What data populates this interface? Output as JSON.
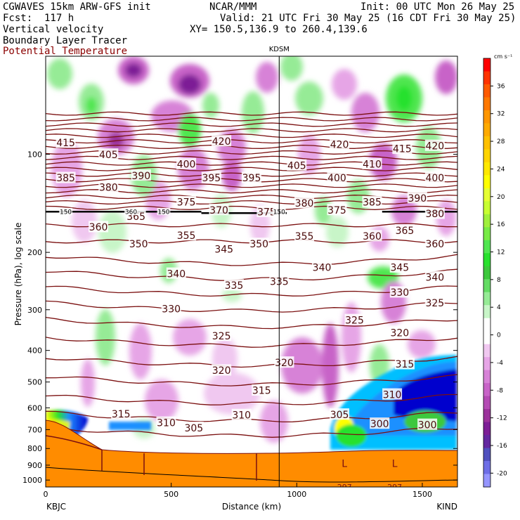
{
  "header": {
    "model": "CGWAVES 15km ARW-GFS init",
    "center": "NCAR/MMM",
    "init": "Init: 00 UTC Mon 26 May 25",
    "fcst": "Fcst:  117 h",
    "valid": "Valid: 21 UTC Fri 30 May 25 (16 CDT Fri 30 May 25)",
    "field1": "Vertical velocity",
    "xy": "XY= 150.5,136.9 to 260.4,139.6",
    "field2": "Boundary Layer Tracer",
    "field3": "Potential Temperature"
  },
  "colors": {
    "theta": "#7b1010",
    "terrain": "#ff8c00"
  },
  "chart_data": {
    "type": "heatmap",
    "title": "",
    "xlabel": "Distance (km)",
    "ylabel": "Pressure (hPa), log scale",
    "xlim": [
      0,
      1640
    ],
    "ylim": [
      1050,
      50
    ],
    "x_ticks": [
      "0",
      "500",
      "1000",
      "1500"
    ],
    "y_ticks": [
      "100",
      "200",
      "300",
      "400",
      "500",
      "600",
      "700",
      "800",
      "900",
      "1000"
    ],
    "y_tick_values": [
      100,
      200,
      300,
      400,
      500,
      600,
      700,
      800,
      900,
      1000
    ],
    "endpoint_left": "KBJC",
    "endpoint_right": "KIND",
    "marker_label": "KDSM",
    "marker_x_km": 930,
    "colorbar": {
      "unit": "cm s⁻¹",
      "labels": [
        "36",
        "32",
        "28",
        "24",
        "20",
        "16",
        "12",
        "8",
        "4",
        "0",
        "-4",
        "-8",
        "-12",
        "-16",
        "-20"
      ],
      "label_values": [
        36,
        32,
        28,
        24,
        20,
        16,
        12,
        8,
        4,
        0,
        -4,
        -8,
        -12,
        -16,
        -20
      ],
      "colors": [
        "#ff0000",
        "#ff3300",
        "#ff5a00",
        "#ff7800",
        "#ff9600",
        "#ffaa00",
        "#ffc000",
        "#ffd400",
        "#ffe800",
        "#ffff00",
        "#e6ff33",
        "#c8ff32",
        "#a0f03c",
        "#78eb46",
        "#50e650",
        "#28e12d",
        "#3cc83c",
        "#64dc64",
        "#96eb96",
        "#c8f5c8",
        "#ffffff",
        "#ffffff",
        "#f0c8f0",
        "#e6a5e6",
        "#d782d7",
        "#c864c8",
        "#b44bb4",
        "#9b329b",
        "#7d1e96",
        "#6428a0",
        "#5050be",
        "#6e6ee6",
        "#9696ff"
      ]
    },
    "theta_labels": [
      {
        "value": "415",
        "x": 80,
        "p": 92
      },
      {
        "value": "420",
        "x": 700,
        "p": 91
      },
      {
        "value": "420",
        "x": 1170,
        "p": 93
      },
      {
        "value": "415",
        "x": 1420,
        "p": 96
      },
      {
        "value": "420",
        "x": 1550,
        "p": 94
      },
      {
        "value": "405",
        "x": 250,
        "p": 100
      },
      {
        "value": "400",
        "x": 560,
        "p": 107
      },
      {
        "value": "410",
        "x": 1300,
        "p": 107
      },
      {
        "value": "405",
        "x": 1000,
        "p": 108
      },
      {
        "value": "385",
        "x": 80,
        "p": 118
      },
      {
        "value": "380",
        "x": 250,
        "p": 126
      },
      {
        "value": "390",
        "x": 380,
        "p": 116
      },
      {
        "value": "395",
        "x": 660,
        "p": 118
      },
      {
        "value": "395",
        "x": 820,
        "p": 118
      },
      {
        "value": "400",
        "x": 1160,
        "p": 118
      },
      {
        "value": "400",
        "x": 1550,
        "p": 118
      },
      {
        "value": "375",
        "x": 560,
        "p": 140
      },
      {
        "value": "370",
        "x": 690,
        "p": 148
      },
      {
        "value": "375",
        "x": 880,
        "p": 150
      },
      {
        "value": "380",
        "x": 1030,
        "p": 141
      },
      {
        "value": "375",
        "x": 1160,
        "p": 148
      },
      {
        "value": "385",
        "x": 1300,
        "p": 140
      },
      {
        "value": "390",
        "x": 1480,
        "p": 136
      },
      {
        "value": "380",
        "x": 1550,
        "p": 152
      },
      {
        "value": "360",
        "x": 210,
        "p": 167
      },
      {
        "value": "365",
        "x": 360,
        "p": 155
      },
      {
        "value": "355",
        "x": 560,
        "p": 177
      },
      {
        "value": "345",
        "x": 710,
        "p": 195
      },
      {
        "value": "350",
        "x": 850,
        "p": 188
      },
      {
        "value": "355",
        "x": 1030,
        "p": 178
      },
      {
        "value": "360",
        "x": 1300,
        "p": 178
      },
      {
        "value": "365",
        "x": 1430,
        "p": 171
      },
      {
        "value": "360",
        "x": 1550,
        "p": 188
      },
      {
        "value": "350",
        "x": 370,
        "p": 188
      },
      {
        "value": "340",
        "x": 520,
        "p": 232
      },
      {
        "value": "335",
        "x": 750,
        "p": 252
      },
      {
        "value": "335",
        "x": 930,
        "p": 245
      },
      {
        "value": "340",
        "x": 1100,
        "p": 222
      },
      {
        "value": "345",
        "x": 1410,
        "p": 222
      },
      {
        "value": "340",
        "x": 1550,
        "p": 238
      },
      {
        "value": "330",
        "x": 500,
        "p": 298
      },
      {
        "value": "330",
        "x": 1410,
        "p": 265
      },
      {
        "value": "325",
        "x": 1550,
        "p": 285
      },
      {
        "value": "325",
        "x": 700,
        "p": 360
      },
      {
        "value": "325",
        "x": 1230,
        "p": 322
      },
      {
        "value": "320",
        "x": 1410,
        "p": 352
      },
      {
        "value": "320",
        "x": 700,
        "p": 460
      },
      {
        "value": "320",
        "x": 950,
        "p": 435
      },
      {
        "value": "315",
        "x": 860,
        "p": 530
      },
      {
        "value": "315",
        "x": 1430,
        "p": 440
      },
      {
        "value": "310",
        "x": 1380,
        "p": 545
      },
      {
        "value": "315",
        "x": 300,
        "p": 625
      },
      {
        "value": "310",
        "x": 480,
        "p": 665
      },
      {
        "value": "305",
        "x": 590,
        "p": 690
      },
      {
        "value": "310",
        "x": 780,
        "p": 630
      },
      {
        "value": "305",
        "x": 1170,
        "p": 628
      },
      {
        "value": "300",
        "x": 1330,
        "p": 670
      },
      {
        "value": "300",
        "x": 1520,
        "p": 675
      }
    ],
    "tropo_labels": [
      {
        "value": "150",
        "x": 80,
        "p": 150
      },
      {
        "value": "360",
        "x": 340,
        "p": 150
      },
      {
        "value": "150",
        "x": 470,
        "p": 150
      },
      {
        "value": "150",
        "x": 930,
        "p": 150
      }
    ],
    "surface_labels": [
      {
        "value": "L",
        "x": 1190,
        "p": 890
      },
      {
        "value": "297",
        "x": 1190,
        "p": 1045
      },
      {
        "value": "L",
        "x": 1390,
        "p": 890
      },
      {
        "value": "297",
        "x": 1390,
        "p": 1045
      }
    ]
  }
}
